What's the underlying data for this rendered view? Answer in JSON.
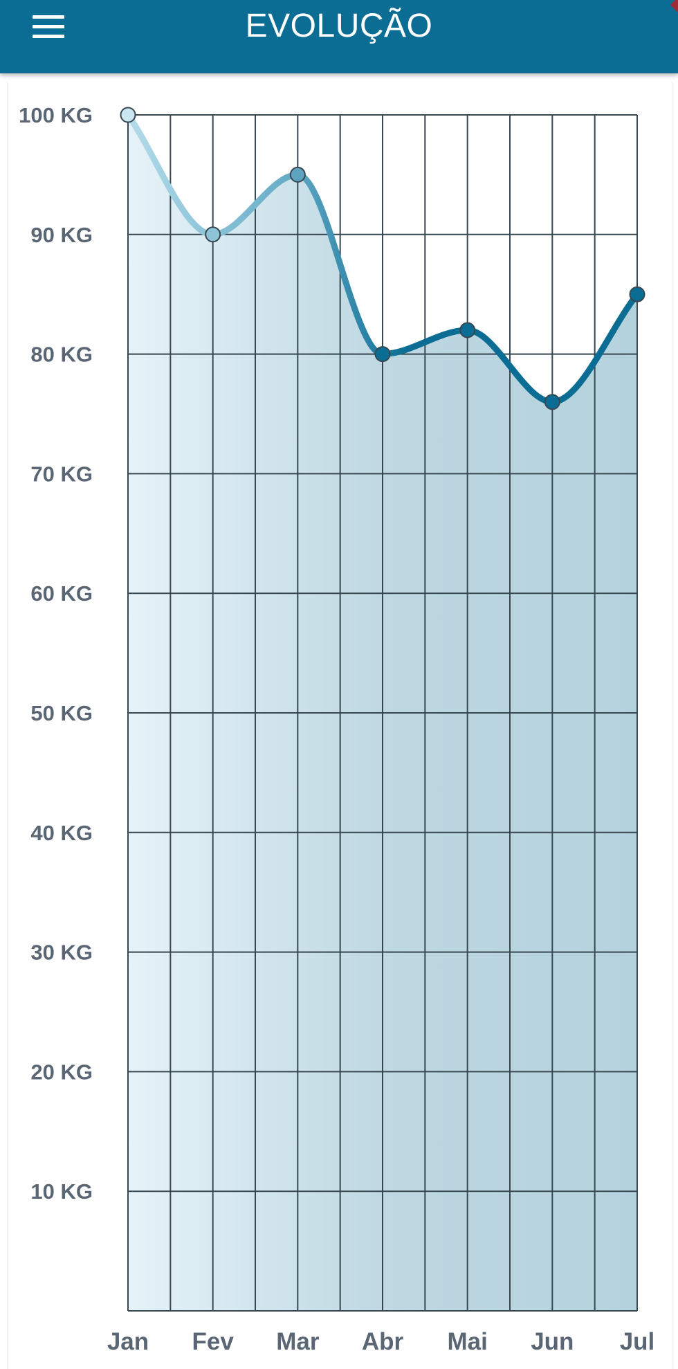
{
  "header": {
    "title": "EVOLUÇÃO",
    "menu_icon": "menu-icon",
    "background_color": "#0b6d94"
  },
  "chart_data": {
    "type": "line",
    "title": "",
    "xlabel": "",
    "ylabel": "",
    "categories": [
      "Jan",
      "Fev",
      "Mar",
      "Abr",
      "Mai",
      "Jun",
      "Jul"
    ],
    "series": [
      {
        "values": [
          100,
          90,
          95,
          80,
          82,
          76,
          85
        ]
      }
    ],
    "ylim": [
      0,
      100
    ],
    "yticks": [
      10,
      20,
      30,
      40,
      50,
      60,
      70,
      80,
      90,
      100
    ],
    "ytick_labels": [
      "10 KG",
      "20 KG",
      "30 KG",
      "40 KG",
      "50 KG",
      "60 KG",
      "70 KG",
      "80 KG",
      "90 KG",
      "100 KG"
    ],
    "grid": true,
    "area_fill": true,
    "colors": {
      "line_start": "#b4dcea",
      "line_end": "#0b6d94",
      "area_start": "#e6f3f9",
      "area_end": "#b4d2dd",
      "grid": "#37474f",
      "tick_text": "#5a6673"
    }
  }
}
